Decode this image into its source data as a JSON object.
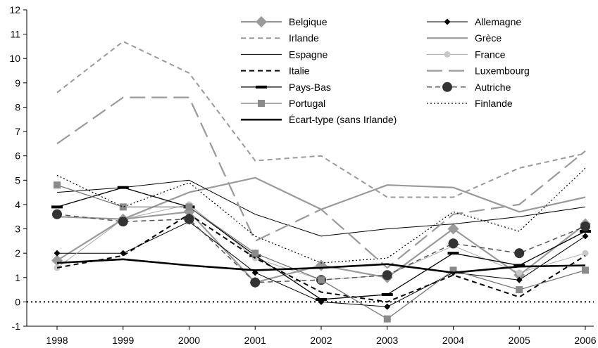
{
  "chart_data": {
    "type": "line",
    "x": [
      "1998",
      "1999",
      "2000",
      "2001",
      "2002",
      "2003",
      "2004",
      "2005",
      "2006"
    ],
    "ylim": [
      -1,
      12
    ],
    "yticks": [
      "-1",
      "0",
      "1",
      "2",
      "3",
      "4",
      "5",
      "6",
      "7",
      "8",
      "9",
      "10",
      "11",
      "12"
    ],
    "grid": false,
    "legend_position": "top-right",
    "reference_line": 0,
    "series": [
      {
        "name": "Belgique",
        "values": [
          1.7,
          3.4,
          3.7,
          0.8,
          1.5,
          1.0,
          3.0,
          1.1,
          3.2
        ],
        "color": "#9a9a9a",
        "marker": "diamond-large",
        "dash": "solid",
        "width": 2.2
      },
      {
        "name": "Allemagne",
        "values": [
          2.0,
          2.0,
          3.3,
          1.2,
          0.0,
          -0.2,
          1.2,
          0.9,
          2.7
        ],
        "color": "#000000",
        "marker": "diamond",
        "dash": "solid",
        "width": 1
      },
      {
        "name": "Irlande",
        "values": [
          8.6,
          10.7,
          9.4,
          5.8,
          6.0,
          4.3,
          4.3,
          5.5,
          6.1
        ],
        "color": "#9a9a9a",
        "marker": "none",
        "dash": "dashed",
        "width": 2
      },
      {
        "name": "Grèce",
        "values": [
          3.5,
          3.4,
          4.5,
          5.1,
          3.8,
          4.8,
          4.7,
          3.7,
          4.3
        ],
        "color": "#9a9a9a",
        "marker": "none",
        "dash": "solid",
        "width": 2.2
      },
      {
        "name": "Espagne",
        "values": [
          4.5,
          4.7,
          5.0,
          3.6,
          2.7,
          3.0,
          3.2,
          3.5,
          3.9
        ],
        "color": "#000000",
        "marker": "none",
        "dash": "solid",
        "width": 1
      },
      {
        "name": "France",
        "values": [
          1.4,
          3.4,
          4.0,
          1.8,
          0.9,
          1.1,
          2.3,
          1.2,
          2.0
        ],
        "color": "#aaaaaa",
        "marker": "circle-small",
        "dash": "solid",
        "width": 1
      },
      {
        "name": "Italie",
        "values": [
          1.4,
          1.9,
          3.6,
          1.8,
          0.4,
          0.0,
          1.1,
          0.2,
          1.9
        ],
        "color": "#000000",
        "marker": "none",
        "dash": "dashed",
        "width": 2
      },
      {
        "name": "Luxembourg",
        "values": [
          6.5,
          8.4,
          8.4,
          2.5,
          3.8,
          1.4,
          3.6,
          4.0,
          6.2
        ],
        "color": "#9a9a9a",
        "marker": "none",
        "dash": "longdash",
        "width": 2.2
      },
      {
        "name": "Pays-Bas",
        "values": [
          3.9,
          4.7,
          3.9,
          1.9,
          0.1,
          0.3,
          2.0,
          1.5,
          2.9
        ],
        "color": "#000000",
        "marker": "dash",
        "dash": "solid",
        "width": 1.3
      },
      {
        "name": "Autriche",
        "values": [
          3.6,
          3.3,
          3.4,
          0.8,
          0.9,
          1.1,
          2.4,
          2.0,
          3.1
        ],
        "color": "#555555",
        "marker": "circle-large",
        "dash": "dashed",
        "width": 1.5
      },
      {
        "name": "Portugal",
        "values": [
          4.8,
          3.9,
          3.9,
          2.0,
          0.9,
          -0.7,
          1.3,
          0.5,
          1.3
        ],
        "color": "#777777",
        "marker": "square",
        "dash": "solid",
        "width": 1.3
      },
      {
        "name": "Finlande",
        "values": [
          5.2,
          3.9,
          4.9,
          2.7,
          1.6,
          1.8,
          3.7,
          2.9,
          5.5
        ],
        "color": "#000000",
        "marker": "none",
        "dash": "dotted",
        "width": 1.2
      },
      {
        "name": "Écart-type (sans Irlande)",
        "values": [
          1.6,
          1.75,
          1.5,
          1.3,
          1.4,
          1.55,
          1.2,
          1.45,
          1.5
        ],
        "color": "#000000",
        "marker": "none",
        "dash": "solid",
        "width": 2.6
      }
    ]
  }
}
